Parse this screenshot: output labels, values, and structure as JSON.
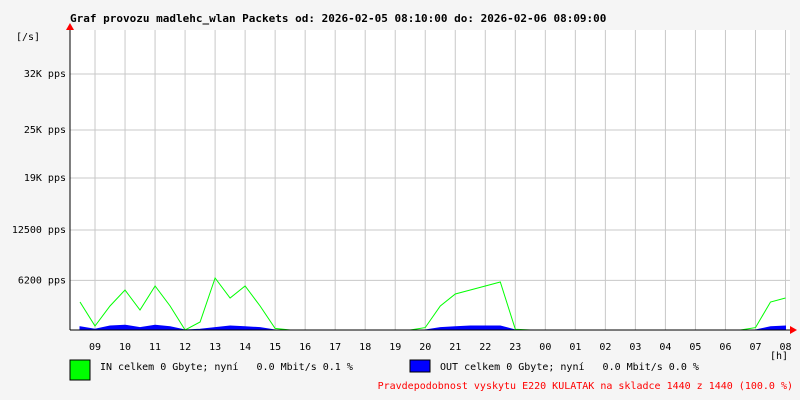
{
  "chart_data": {
    "type": "line",
    "title": "Graf provozu madlehc_wlan Packets od: 2026-02-05 08:10:00 do: 2026-02-06 08:09:00",
    "y_label": "[/s]",
    "x_label": "[h]",
    "xlim": [
      8.1667,
      32.15
    ],
    "xticks": [
      {
        "value": 9,
        "label": "09"
      },
      10,
      11,
      12,
      13,
      14,
      15,
      16,
      17,
      18,
      19,
      20,
      21,
      22,
      23,
      {
        "value": 24,
        "label": "00"
      },
      {
        "value": 25,
        "label": "01"
      },
      {
        "value": 26,
        "label": "02"
      },
      {
        "value": 27,
        "label": "03"
      },
      {
        "value": 28,
        "label": "04"
      },
      {
        "value": 29,
        "label": "05"
      },
      {
        "value": 30,
        "label": "06"
      },
      {
        "value": 31,
        "label": "07"
      },
      {
        "value": 32,
        "label": "08"
      }
    ],
    "ylim": [
      0,
      37500
    ],
    "yticks": [
      {
        "value": 6200,
        "label": "6200 pps"
      },
      {
        "value": 12500,
        "label": "12500 pps"
      },
      {
        "value": 19000,
        "label": "19K pps"
      },
      {
        "value": 25000,
        "label": "25K pps"
      },
      {
        "value": 32000,
        "label": "32K pps"
      }
    ],
    "grid": true,
    "x": [
      8.5,
      9,
      9.5,
      10,
      10.5,
      11,
      11.5,
      12,
      12.5,
      13,
      13.5,
      14,
      14.5,
      15,
      15.5,
      16,
      16.5,
      17,
      17.5,
      18,
      18.5,
      19,
      19.5,
      20,
      20.5,
      21,
      21.5,
      22,
      22.5,
      23,
      23.5,
      24,
      24.5,
      25,
      25.5,
      26,
      26.5,
      27,
      27.5,
      28,
      28.5,
      29,
      29.5,
      30,
      30.5,
      31,
      31.5,
      32
    ],
    "series": [
      {
        "name": "IN celkem 0 Gbyte; nyní   0.0 Mbit/s 0.1 %",
        "color": "#00ff00",
        "values": [
          3500,
          500,
          3000,
          5000,
          2500,
          5500,
          3000,
          0,
          1000,
          6500,
          4000,
          5500,
          3000,
          200,
          0,
          0,
          0,
          0,
          0,
          0,
          0,
          0,
          0,
          300,
          3000,
          4500,
          5000,
          5500,
          6000,
          100,
          0,
          0,
          0,
          0,
          0,
          0,
          0,
          0,
          0,
          0,
          0,
          0,
          0,
          0,
          0,
          300,
          3500,
          4000
        ]
      },
      {
        "name": "OUT celkem 0 Gbyte; nyní   0.0 Mbit/s 0.0 %",
        "color": "#0000ff",
        "values": [
          400,
          100,
          500,
          600,
          300,
          600,
          400,
          0,
          100,
          300,
          500,
          400,
          300,
          0,
          0,
          0,
          0,
          0,
          0,
          0,
          0,
          0,
          0,
          0,
          300,
          400,
          500,
          500,
          500,
          0,
          0,
          0,
          0,
          0,
          0,
          0,
          0,
          0,
          0,
          0,
          0,
          0,
          0,
          0,
          0,
          0,
          400,
          500
        ]
      }
    ],
    "footer": "Pravdepodobnost vyskytu E220 KULATAK na skladce 1440 z 1440 (100.0 %)"
  }
}
